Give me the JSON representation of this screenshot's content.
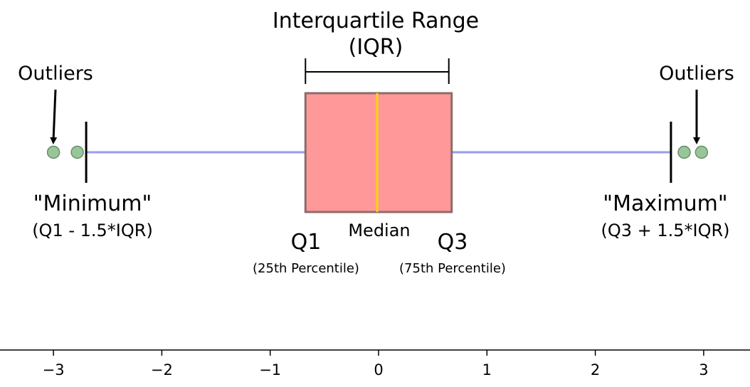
{
  "annotations": {
    "iqr_title_line1": "Interquartile Range",
    "iqr_title_line2": "(IQR)",
    "outliers_left": "Outliers",
    "outliers_right": "Outliers",
    "minimum_label": "\"Minimum\"",
    "minimum_formula": "(Q1 - 1.5*IQR)",
    "maximum_label": "\"Maximum\"",
    "maximum_formula": "(Q3 + 1.5*IQR)",
    "median_label": "Median",
    "q1_label": "Q1",
    "q1_sub": "(25th Percentile)",
    "q3_label": "Q3",
    "q3_sub": "(75th Percentile)"
  },
  "axis": {
    "ticks": [
      "−3",
      "−2",
      "−1",
      "0",
      "1",
      "2",
      "3"
    ],
    "tick_values": [
      -3,
      -2,
      -1,
      0,
      1,
      2,
      3
    ]
  },
  "boxplot": {
    "q1": -0.6745,
    "median": 0,
    "q3": 0.6745,
    "whisker_min": -2.698,
    "whisker_max": 2.698,
    "outliers": [
      -3.0,
      -2.78,
      2.82,
      2.98
    ]
  },
  "colors": {
    "box_fill": "#ff9999",
    "box_edge": "#8c6b6b",
    "median": "#ffd700",
    "whisker": "#9a9aee",
    "outlier_fill": "#99c699",
    "outlier_edge": "#6a8c6a"
  }
}
